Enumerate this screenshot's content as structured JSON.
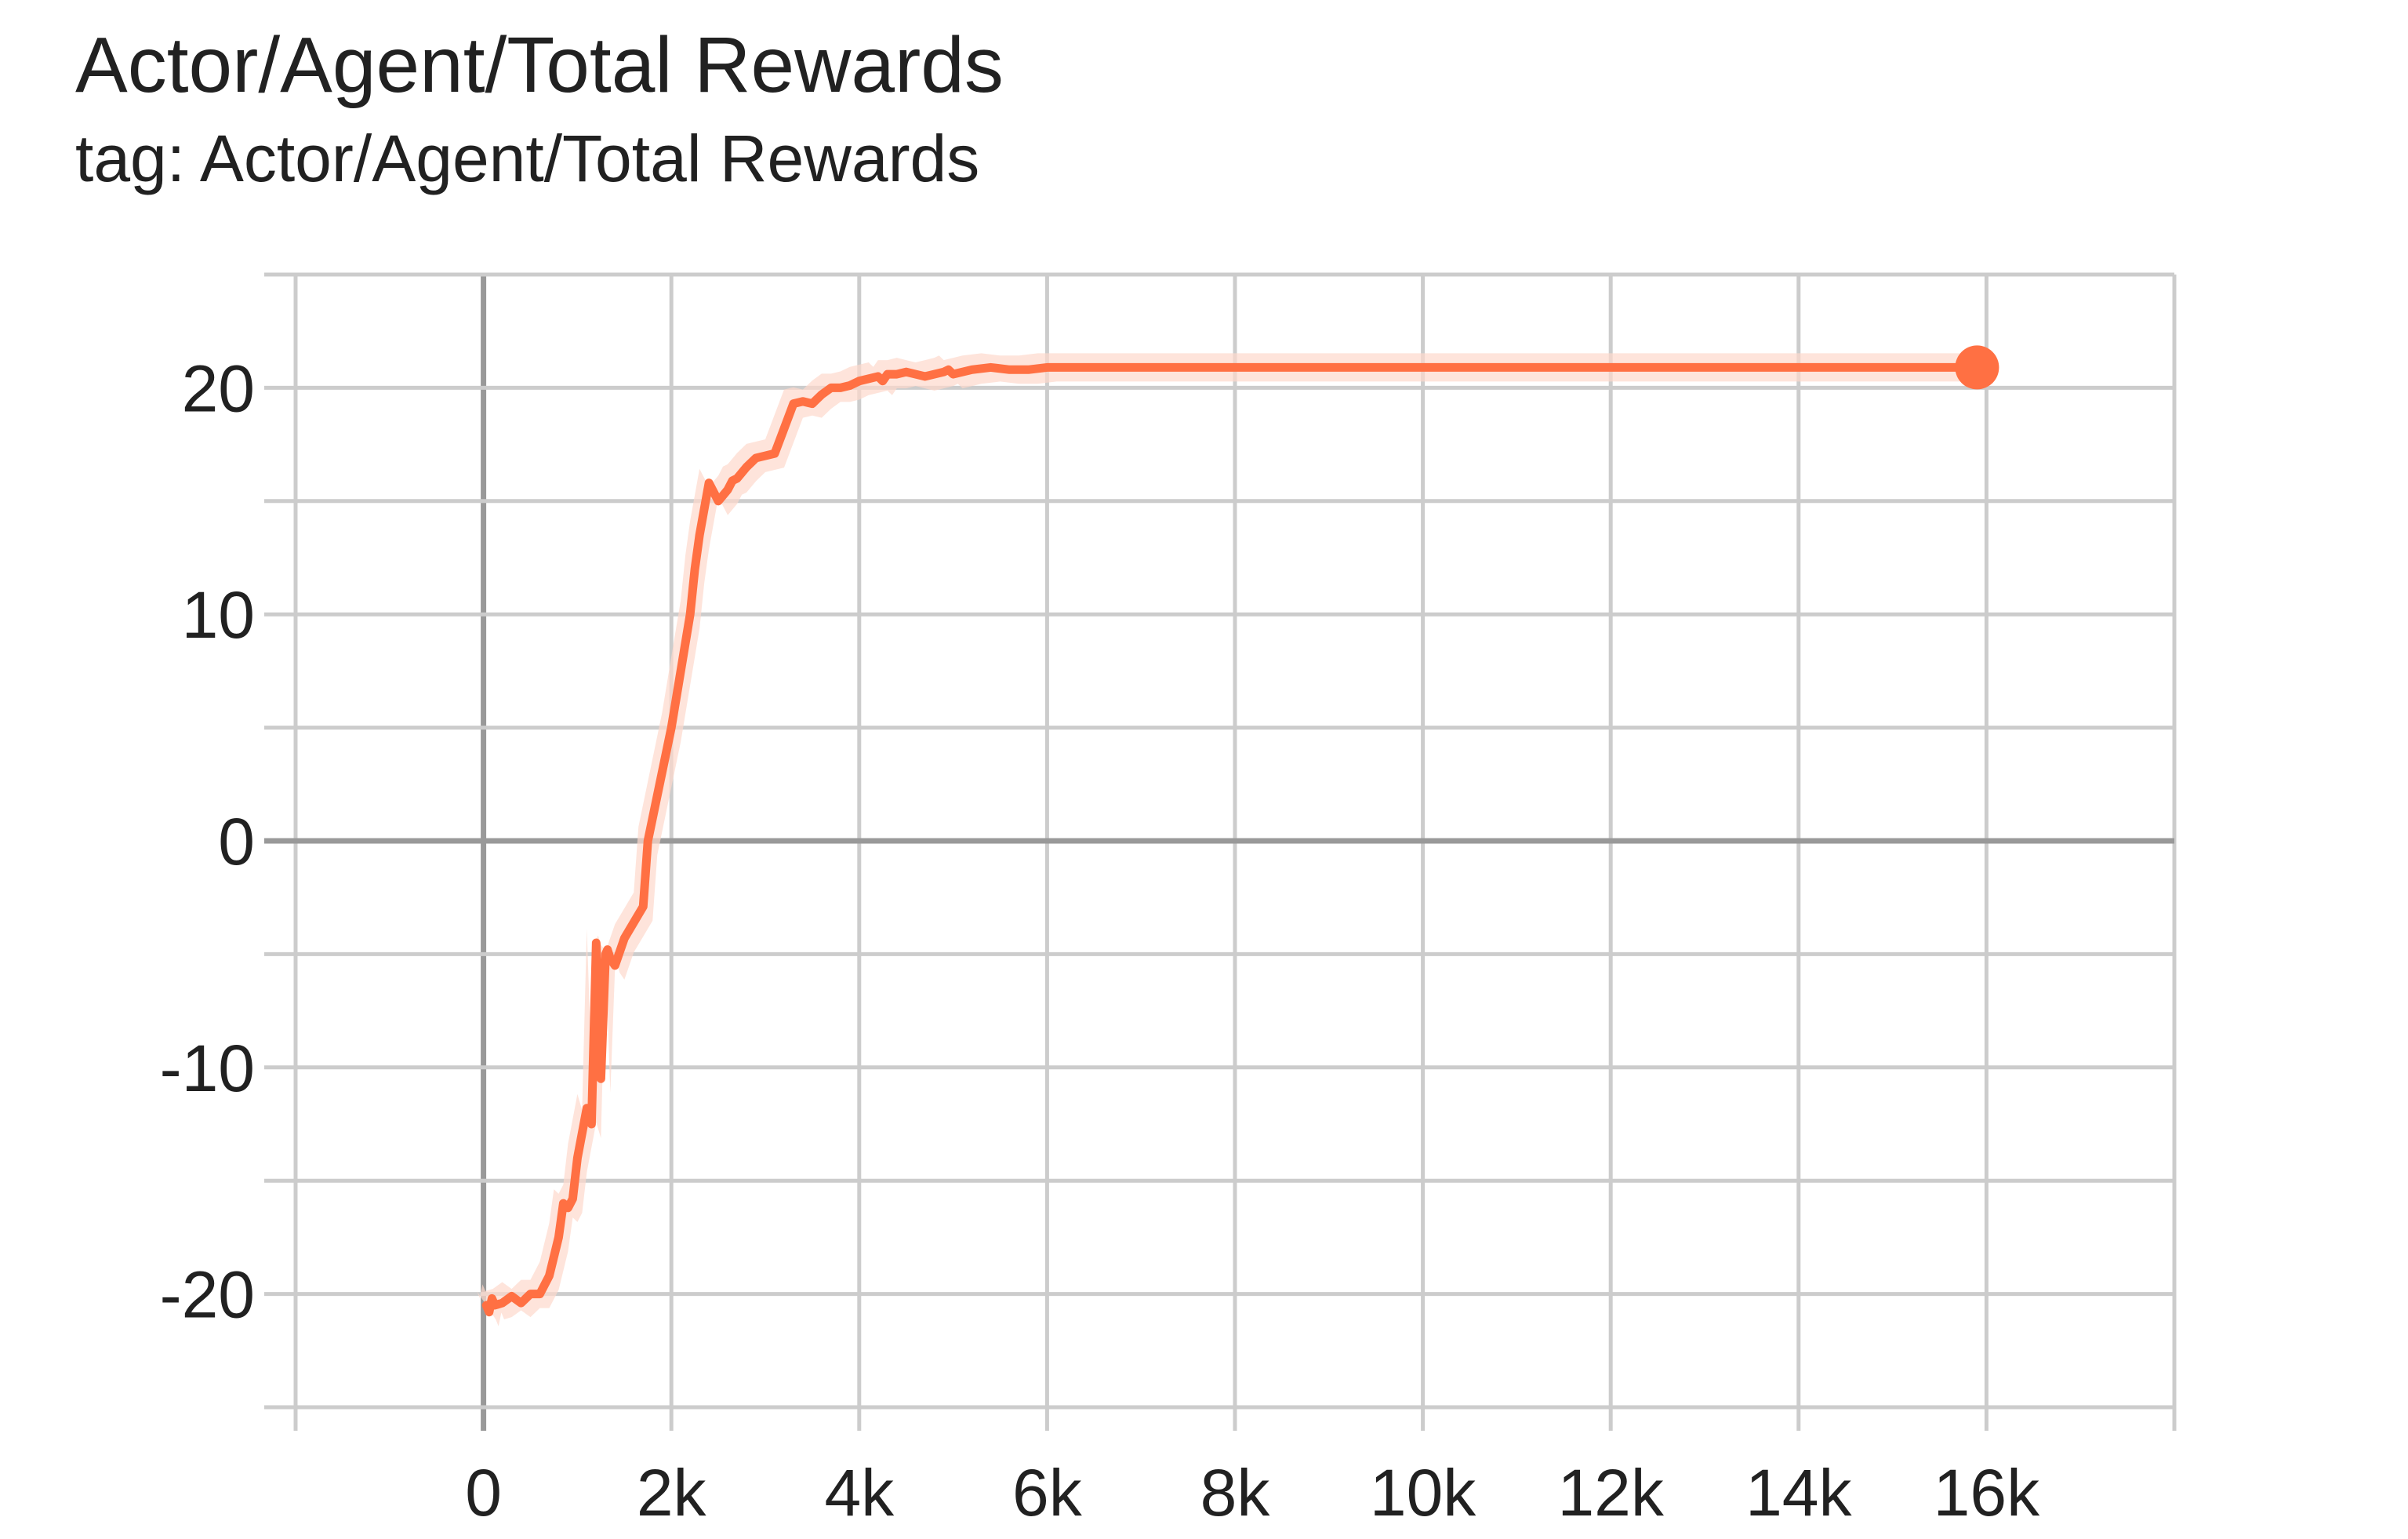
{
  "header": {
    "title": "Actor/Agent/Total Rewards",
    "subtitle": "tag: Actor/Agent/Total Rewards"
  },
  "colors": {
    "series": "#ff7043",
    "series_band": "#fdd9cc",
    "grid": "#cccccc",
    "axis_zero": "#999999",
    "text": "#212121"
  },
  "chart_data": {
    "type": "line",
    "title": "Actor/Agent/Total Rewards",
    "subtitle": "tag: Actor/Agent/Total Rewards",
    "xlabel": "",
    "ylabel": "",
    "xlim": [
      -2000,
      18000
    ],
    "ylim": [
      -25,
      25
    ],
    "xticks": [
      0,
      2000,
      4000,
      6000,
      8000,
      10000,
      12000,
      14000,
      16000
    ],
    "xtick_labels": [
      "0",
      "2k",
      "4k",
      "6k",
      "8k",
      "10k",
      "12k",
      "14k",
      "16k"
    ],
    "yticks": [
      -20,
      -10,
      0,
      10,
      20
    ],
    "ytick_labels": [
      "-20",
      "-10",
      "0",
      "10",
      "20"
    ],
    "grid": true,
    "legend": "none",
    "series": [
      {
        "color": "#ff7043",
        "x": [
          30,
          60,
          90,
          120,
          200,
          300,
          400,
          450,
          500,
          600,
          700,
          800,
          850,
          900,
          950,
          1000,
          1100,
          1150,
          1200,
          1250,
          1300,
          1320,
          1350,
          1400,
          1500,
          1600,
          1700,
          1750,
          1800,
          2000,
          2200,
          2250,
          2300,
          2400,
          2500,
          2600,
          2650,
          2700,
          2800,
          2900,
          3000,
          3100,
          3200,
          3300,
          3400,
          3500,
          3550,
          3600,
          3700,
          3800,
          3900,
          4000,
          4100,
          4200,
          4250,
          4300,
          4400,
          4500,
          4600,
          4700,
          4800,
          4900,
          4950,
          5000,
          5200,
          5400,
          5600,
          5800,
          6000,
          6200,
          6400,
          6600,
          6800,
          7000,
          7500,
          8000,
          8500,
          9000,
          9500,
          10000,
          10500,
          11000,
          11500,
          12000,
          12500,
          13000,
          13500,
          14000,
          14500,
          15000,
          15500,
          15900
        ],
        "y": [
          -20.5,
          -20.8,
          -20.2,
          -20.5,
          -20.4,
          -20.1,
          -20.4,
          -20.2,
          -20.0,
          -20.0,
          -19.2,
          -17.5,
          -16.0,
          -16.2,
          -15.8,
          -14.0,
          -11.8,
          -12.5,
          -4.5,
          -10.5,
          -5.0,
          -4.8,
          -5.2,
          -5.5,
          -4.3,
          -3.6,
          -2.9,
          0.0,
          1.0,
          5.0,
          10.0,
          12.0,
          13.5,
          15.8,
          15.0,
          15.5,
          15.9,
          16.0,
          16.5,
          16.9,
          17.0,
          17.1,
          18.2,
          19.3,
          19.4,
          19.3,
          19.5,
          19.7,
          20.0,
          20.0,
          20.1,
          20.3,
          20.4,
          20.5,
          20.3,
          20.6,
          20.6,
          20.7,
          20.6,
          20.5,
          20.6,
          20.7,
          20.8,
          20.6,
          20.8,
          20.9,
          20.8,
          20.8,
          20.9,
          20.9,
          20.9,
          20.9,
          20.9,
          20.9,
          20.9,
          20.9,
          20.9,
          20.9,
          20.9,
          20.9,
          20.9,
          20.9,
          20.9,
          20.9,
          20.9,
          20.9,
          20.9,
          20.9,
          20.9,
          20.9,
          20.9,
          20.9
        ]
      }
    ]
  }
}
